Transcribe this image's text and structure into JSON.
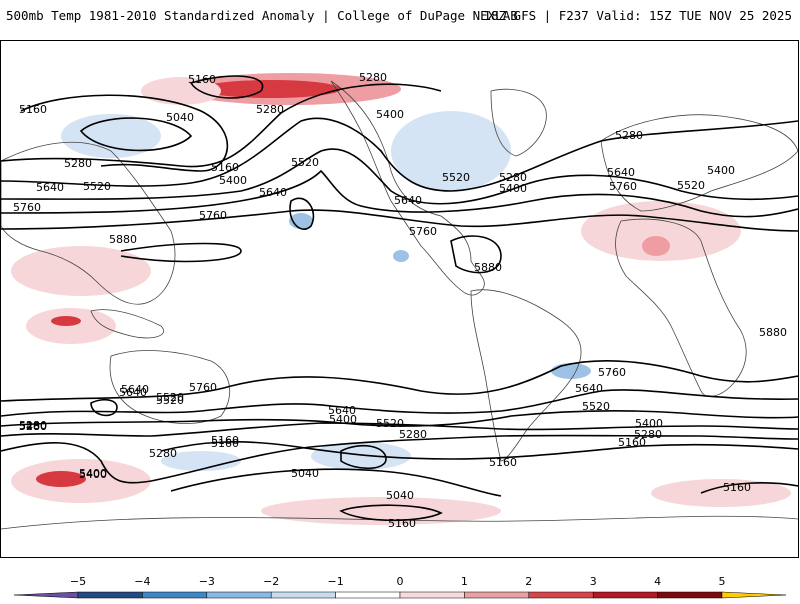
{
  "header": {
    "title_left": "500mb Temp 1981-2010 Standardized Anomaly | College of DuPage NEXLAB",
    "title_right": "18Z GFS | F237 Valid: 15Z TUE NOV 25 2025"
  },
  "map": {
    "product": "500mb height contours with standardized temperature anomaly shading",
    "contour_labels": [
      "5160",
      "5280",
      "5160",
      "5040",
      "5280",
      "5400",
      "5160",
      "5520",
      "5280",
      "5640",
      "5520",
      "5400",
      "5760",
      "5640",
      "5880",
      "5760",
      "5520",
      "5280",
      "5400",
      "5640",
      "5760",
      "5880",
      "5280",
      "5400",
      "5520",
      "5640",
      "5760",
      "5880",
      "5760",
      "5640",
      "5520",
      "5400",
      "5280",
      "5160",
      "5640",
      "5400",
      "5520",
      "5280",
      "5040",
      "5160",
      "5040",
      "5160",
      "5280",
      "5400",
      "5760",
      "5640",
      "5520",
      "5400",
      "5280",
      "5160",
      "5160",
      "5640",
      "5520",
      "5160",
      "5280",
      "5400"
    ],
    "colors": {
      "land_outline": "#444444",
      "contour": "#000000",
      "pos_light": "#f6d6d8",
      "pos_mid": "#ee9da3",
      "pos_strong": "#d6393f",
      "neg_light": "#d4e4f4",
      "neg_mid": "#9ec2e6"
    }
  },
  "colorbar": {
    "ticks": [
      "−5",
      "−4",
      "−3",
      "−2",
      "−1",
      "0",
      "1",
      "2",
      "3",
      "4",
      "5"
    ],
    "colors": [
      "#6a4fa3",
      "#264a82",
      "#3e86c4",
      "#8ab8e0",
      "#c6dcf0",
      "#ffffff",
      "#f7dada",
      "#e8a0a4",
      "#d6454a",
      "#b41820",
      "#7a0a10",
      "#ffcc00"
    ]
  }
}
